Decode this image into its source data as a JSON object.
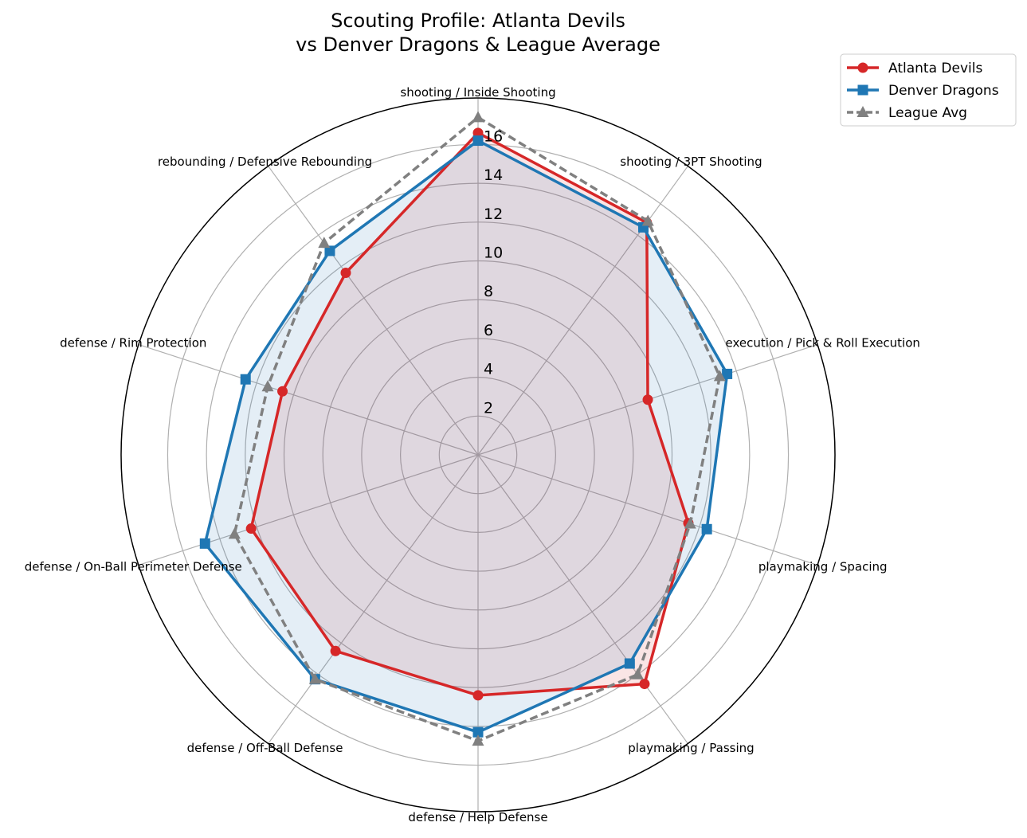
{
  "chart_data": {
    "type": "radar",
    "title": "Scouting Profile: Atlanta Devils\nvs Denver Dragons & League Average",
    "categories": [
      "shooting / Inside Shooting",
      "shooting / 3PT Shooting",
      "execution / Pick & Roll Execution",
      "playmaking / Spacing",
      "playmaking / Passing",
      "defense / Help Defense",
      "defense / Off-Ball Defense",
      "defense / On-Ball Perimeter Defense",
      "defense / Rim Protection",
      "rebounding / Defensive Rebounding"
    ],
    "radial_ticks": [
      2,
      4,
      6,
      8,
      10,
      12,
      14,
      16
    ],
    "rlim": [
      0,
      18.4
    ],
    "grid": true,
    "legend_placement": "top-right",
    "series": [
      {
        "name": "Atlanta Devils",
        "color": "#d62728",
        "marker": "circle",
        "line": "solid",
        "fill": true,
        "values": [
          16.6,
          14.8,
          9.2,
          11.4,
          14.6,
          12.4,
          12.5,
          12.3,
          10.6,
          11.6
        ]
      },
      {
        "name": "Denver Dragons",
        "color": "#1f77b4",
        "marker": "square",
        "line": "solid",
        "fill": true,
        "values": [
          16.2,
          14.5,
          13.5,
          12.4,
          13.3,
          14.3,
          14.3,
          14.8,
          12.6,
          13.0
        ]
      },
      {
        "name": "League Avg",
        "color": "#808080",
        "marker": "triangle",
        "line": "dashed",
        "fill": false,
        "values": [
          17.4,
          14.9,
          13.1,
          11.5,
          14.0,
          14.75,
          14.3,
          13.2,
          11.4,
          13.5
        ]
      }
    ]
  }
}
